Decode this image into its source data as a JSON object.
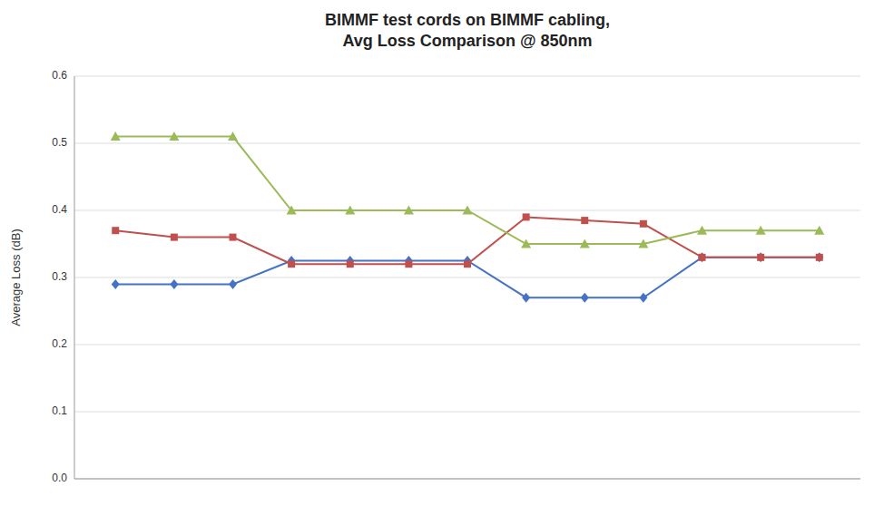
{
  "chart_data": {
    "type": "line",
    "title": "BIMMF test cords on BIMMF cabling,\nAvg Loss Comparison @ 850nm",
    "y_label": "Average Loss (dB)",
    "x": [
      1,
      2,
      3,
      4,
      5,
      6,
      7,
      8,
      9,
      10,
      11,
      12,
      13
    ],
    "xlim": [
      0.3,
      13.7
    ],
    "ylim": [
      0,
      0.6
    ],
    "yticks": [
      {
        "value": 0,
        "label": "0.0"
      },
      0.1,
      0.2,
      0.3,
      0.4,
      0.5,
      0.6
    ],
    "grid": true,
    "tick_labels": "y",
    "series": [
      {
        "color": "#4472C4",
        "marker": "diamond",
        "values": [
          0.29,
          0.29,
          0.29,
          0.325,
          0.325,
          0.325,
          0.325,
          0.27,
          0.27,
          0.27,
          0.33,
          0.33,
          0.33
        ]
      },
      {
        "color": "#C0504D",
        "marker": "square",
        "values": [
          0.37,
          0.36,
          0.36,
          0.32,
          0.32,
          0.32,
          0.32,
          0.39,
          0.385,
          0.38,
          0.33,
          0.33,
          0.33
        ]
      },
      {
        "color": "#9BBB59",
        "marker": "triangle",
        "values": [
          0.51,
          0.51,
          0.51,
          0.4,
          0.4,
          0.4,
          0.4,
          0.35,
          0.35,
          0.35,
          0.37,
          0.37,
          0.37
        ]
      }
    ]
  }
}
